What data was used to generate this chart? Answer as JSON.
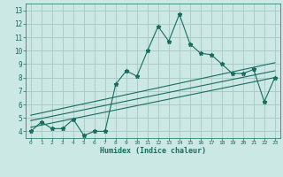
{
  "title": "",
  "xlabel": "Humidex (Indice chaleur)",
  "ylabel": "",
  "bg_color": "#cce8e4",
  "grid_color": "#aaccc8",
  "line_color": "#1a6b60",
  "xlim": [
    -0.5,
    23.5
  ],
  "ylim": [
    3.5,
    13.5
  ],
  "xticks": [
    0,
    1,
    2,
    3,
    4,
    5,
    6,
    7,
    8,
    9,
    10,
    11,
    12,
    13,
    14,
    15,
    16,
    17,
    18,
    19,
    20,
    21,
    22,
    23
  ],
  "yticks": [
    4,
    5,
    6,
    7,
    8,
    9,
    10,
    11,
    12,
    13
  ],
  "line1_x": [
    0,
    1,
    2,
    3,
    4,
    5,
    6,
    7,
    8,
    9,
    10,
    11,
    12,
    13,
    14,
    15,
    16,
    17,
    18,
    19,
    20,
    21,
    22,
    23
  ],
  "line1_y": [
    4.0,
    4.7,
    4.2,
    4.2,
    4.9,
    3.7,
    4.0,
    4.0,
    7.5,
    8.5,
    8.1,
    10.0,
    11.8,
    10.7,
    12.7,
    10.5,
    9.8,
    9.7,
    9.0,
    8.3,
    8.3,
    8.6,
    6.2,
    8.0
  ],
  "line2_x": [
    0,
    23
  ],
  "line2_y": [
    4.3,
    8.0
  ],
  "line3_x": [
    0,
    23
  ],
  "line3_y": [
    4.8,
    8.5
  ],
  "line4_x": [
    0,
    23
  ],
  "line4_y": [
    5.2,
    9.1
  ]
}
